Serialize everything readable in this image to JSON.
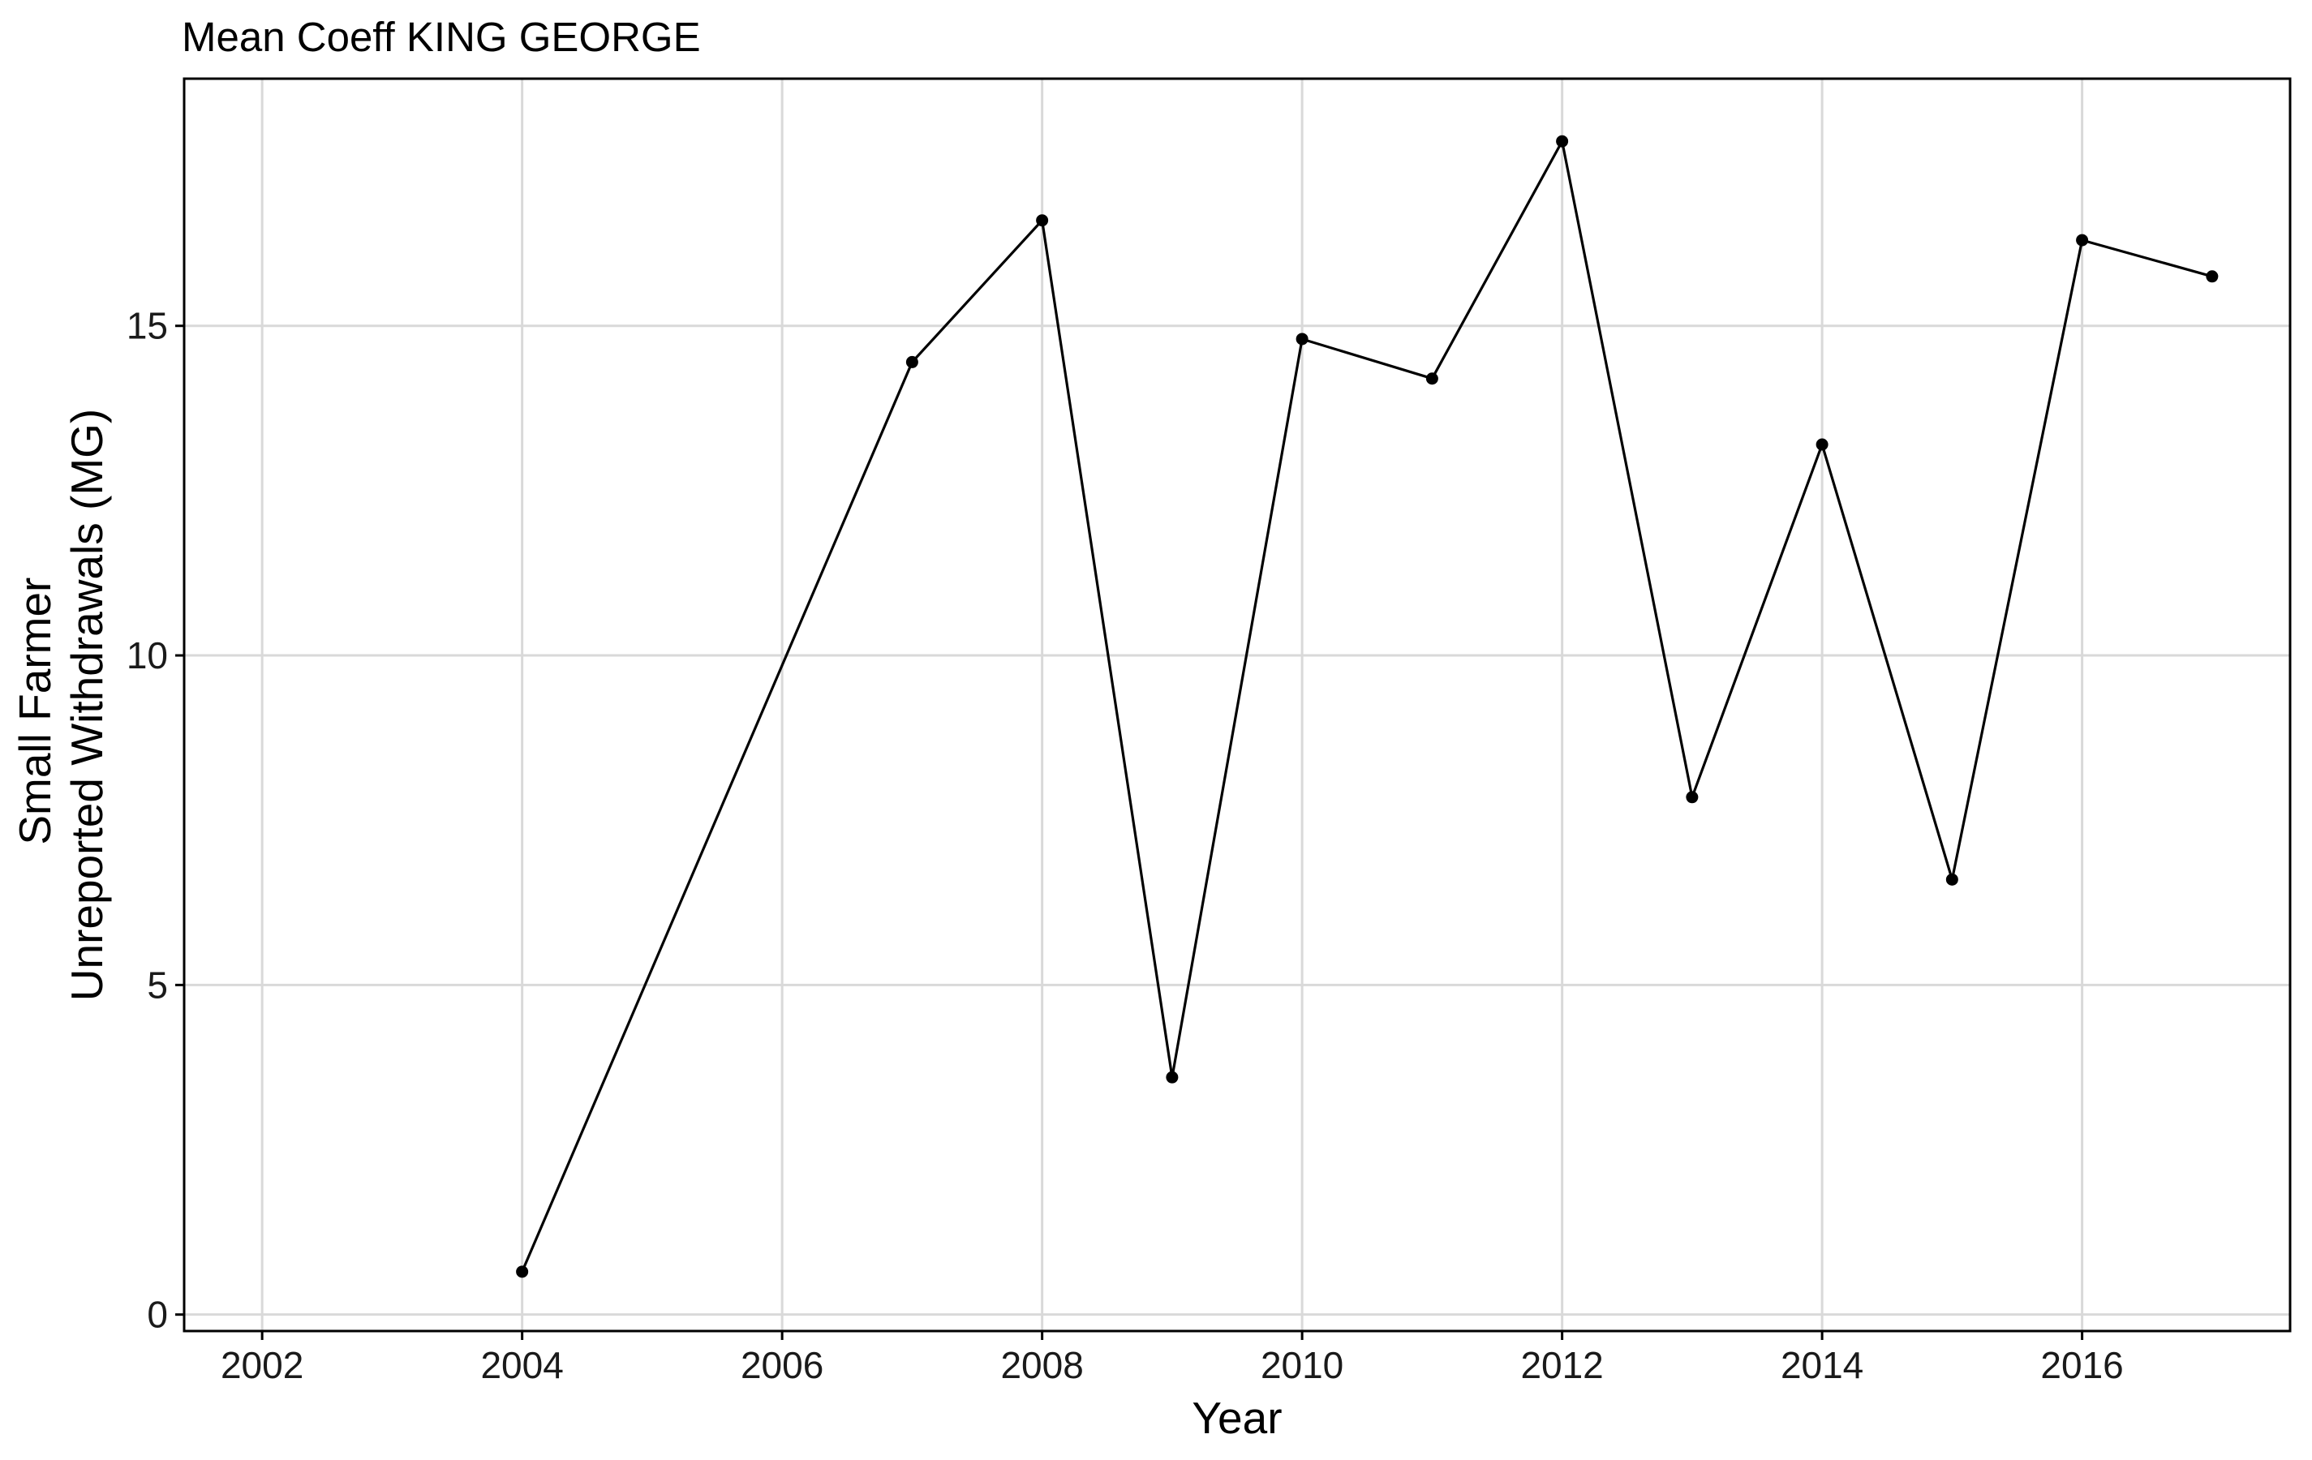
{
  "chart_data": {
    "type": "line",
    "title": "Mean Coeff KING GEORGE",
    "xlabel": "Year",
    "ylabel_lines": [
      "Small Farmer",
      "Unreported Withdrawals (MG)"
    ],
    "xlim": [
      2001.4,
      2017.6
    ],
    "ylim": [
      -0.25,
      18.75
    ],
    "x_ticks": [
      2002,
      2004,
      2006,
      2008,
      2010,
      2012,
      2014,
      2016
    ],
    "y_ticks": [
      0,
      5,
      10,
      15
    ],
    "grid": true,
    "series": [
      {
        "x": [
          2004,
          2007,
          2008,
          2009,
          2010,
          2011,
          2012,
          2013,
          2014,
          2015,
          2016,
          2017
        ],
        "y": [
          0.65,
          14.45,
          16.6,
          3.6,
          14.8,
          14.2,
          17.8,
          7.85,
          13.2,
          6.6,
          16.3,
          15.75
        ]
      }
    ],
    "colors": {
      "line": "#000000",
      "grid": "#d9d9d9",
      "frame": "#000000"
    }
  }
}
